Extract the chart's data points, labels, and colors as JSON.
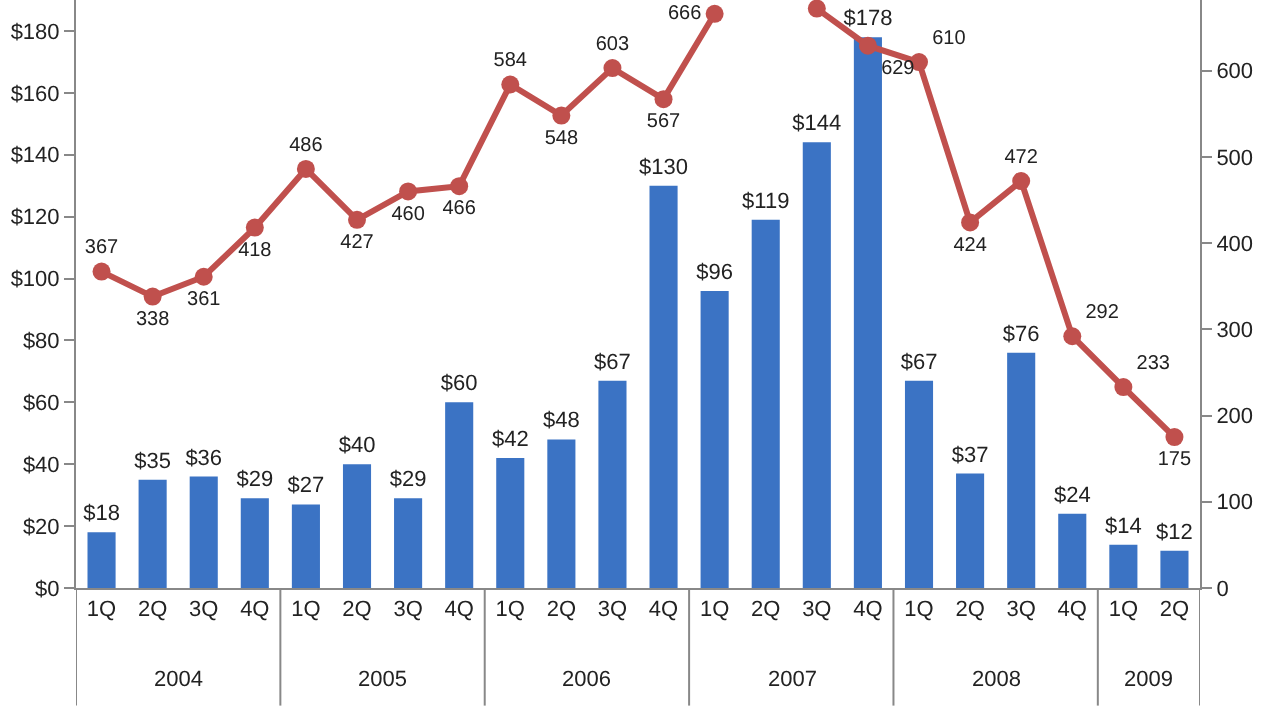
{
  "chart_data": {
    "type": "bar",
    "categories": [
      "1Q",
      "2Q",
      "3Q",
      "4Q",
      "1Q",
      "2Q",
      "3Q",
      "4Q",
      "1Q",
      "2Q",
      "3Q",
      "4Q",
      "1Q",
      "2Q",
      "3Q",
      "4Q",
      "1Q",
      "2Q",
      "3Q",
      "4Q",
      "1Q",
      "2Q"
    ],
    "series": [
      {
        "type": "bar",
        "color": "#3b73c4",
        "values": [
          18,
          35,
          36,
          29,
          27,
          40,
          29,
          60,
          42,
          48,
          67,
          130,
          96,
          119,
          144,
          178,
          67,
          37,
          76,
          24,
          14,
          12
        ],
        "value_labels": [
          "$18",
          "$35",
          "$36",
          "$29",
          "$27",
          "$40",
          "$29",
          "$60",
          "$42",
          "$48",
          "$67",
          "$130",
          "$96",
          "$119",
          "$144",
          "$178",
          "$67",
          "$37",
          "$76",
          "$24",
          "$14",
          "$12"
        ]
      },
      {
        "type": "line",
        "axis": "y2",
        "color": "#c0504d",
        "marker": "circle",
        "values": [
          367,
          338,
          361,
          418,
          486,
          427,
          460,
          466,
          584,
          548,
          603,
          567,
          666,
          null,
          672,
          629,
          610,
          424,
          472,
          292,
          233,
          175
        ],
        "value_labels": [
          "367",
          "338",
          "361",
          "418",
          "486",
          "427",
          "460",
          "466",
          "584",
          "548",
          "603",
          "567",
          "666",
          null,
          null,
          "629",
          "610",
          "424",
          "472",
          "292",
          "233",
          "175"
        ]
      }
    ],
    "annotations": [
      "2004",
      "2005",
      "2006",
      "2007",
      "2008",
      "2009"
    ],
    "ylim": [
      0,
      190
    ],
    "yticks": [
      {
        "value": 0,
        "label": "$0"
      },
      {
        "value": 20,
        "label": "$20"
      },
      {
        "value": 40,
        "label": "$40"
      },
      {
        "value": 60,
        "label": "$60"
      },
      {
        "value": 80,
        "label": "$80"
      },
      {
        "value": 100,
        "label": "$100"
      },
      {
        "value": 120,
        "label": "$120"
      },
      {
        "value": 140,
        "label": "$140"
      },
      {
        "value": 160,
        "label": "$160"
      },
      {
        "value": 180,
        "label": "$180"
      }
    ],
    "y2lim": [
      0,
      682
    ],
    "y2ticks": [
      0,
      100,
      200,
      300,
      400,
      500,
      600
    ],
    "grid": false
  }
}
